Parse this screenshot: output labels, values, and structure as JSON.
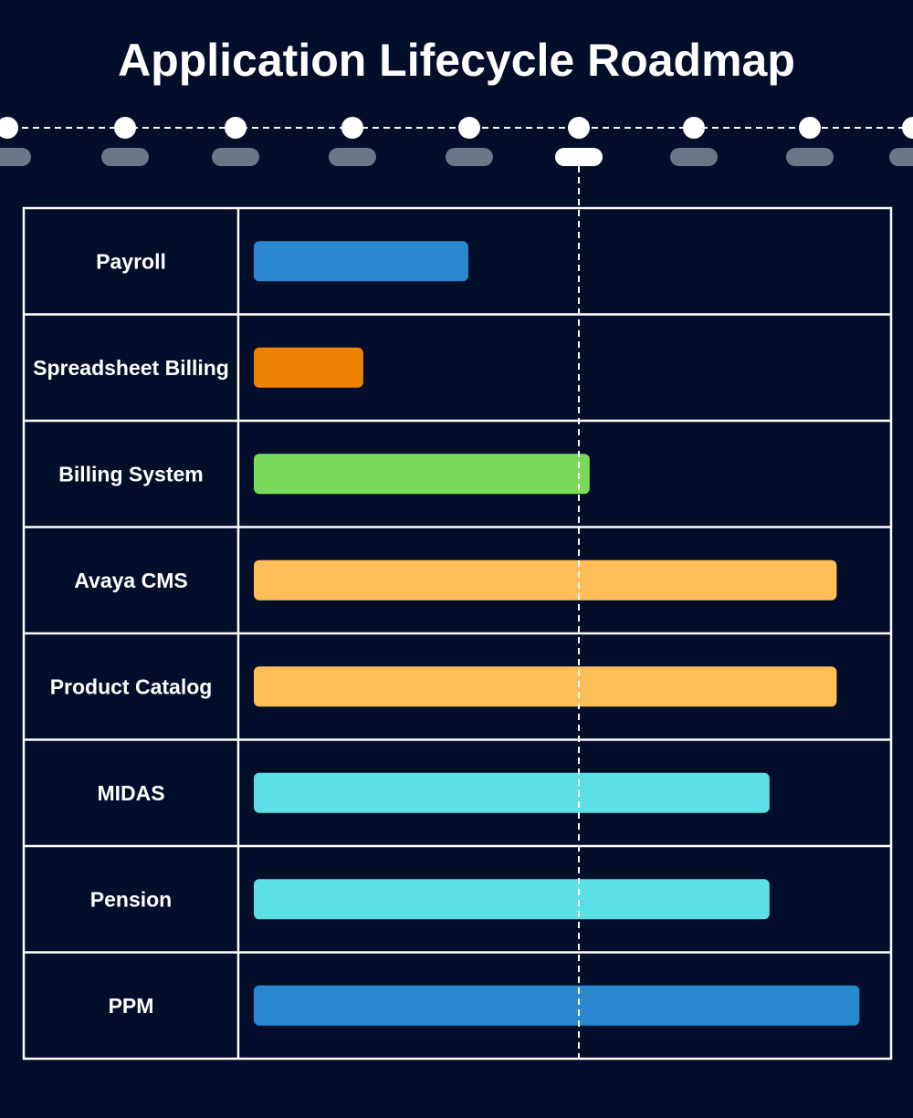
{
  "title": "Application Lifecycle Roadmap",
  "colors": {
    "background": "#020e2a",
    "grid": "#ffffff",
    "tick_pill": "#6b7689",
    "current_pill": "#ffffff",
    "text": "#ffffff"
  },
  "chart_data": {
    "type": "bar",
    "orientation": "horizontal",
    "title": "Application Lifecycle Roadmap",
    "timeline_ticks": 9,
    "current_tick_index": 5,
    "tick_labels": [
      "",
      "",
      "",
      "",
      "",
      "",
      "",
      "",
      ""
    ],
    "categories": [
      "Payroll",
      "Spreadsheet Billing",
      "Billing System",
      "Avaya CMS",
      "Product Catalog",
      "MIDAS",
      "Pension",
      "PPM"
    ],
    "bars": [
      {
        "start": 0.0,
        "end": 1.98,
        "color": "#2a88cf"
      },
      {
        "start": 0.0,
        "end": 1.01,
        "color": "#ef8204"
      },
      {
        "start": 0.0,
        "end": 3.1,
        "color": "#7bd959"
      },
      {
        "start": 0.0,
        "end": 5.38,
        "color": "#fdbe5a"
      },
      {
        "start": 0.0,
        "end": 5.38,
        "color": "#fdbe5a"
      },
      {
        "start": 0.0,
        "end": 4.76,
        "color": "#5ce0e6"
      },
      {
        "start": 0.0,
        "end": 4.76,
        "color": "#5ce0e6"
      },
      {
        "start": 0.0,
        "end": 5.59,
        "color": "#2a88cf"
      }
    ],
    "grid": true,
    "legend": "none"
  }
}
